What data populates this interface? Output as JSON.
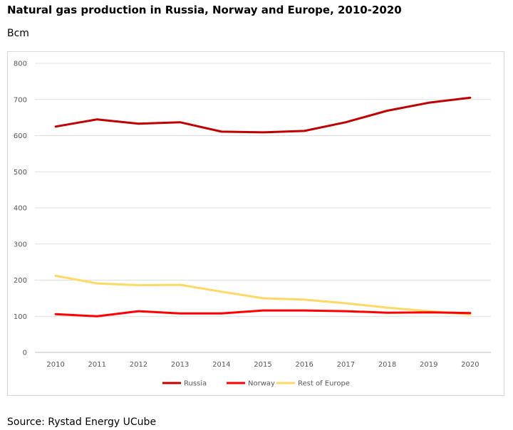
{
  "title": "Natural gas production in Russia, Norway and Europe, 2010-2020",
  "unit_label": "Bcm",
  "source": "Source: Rystad Energy UCube",
  "chart_data": {
    "type": "line",
    "title": "Natural gas production in Russia, Norway and Europe, 2010-2020",
    "ylabel": "Bcm",
    "xlabel": "",
    "x": [
      "2010",
      "2011",
      "2012",
      "2013",
      "2014",
      "2015",
      "2016",
      "2017",
      "2018",
      "2019",
      "2020"
    ],
    "yticks": [
      0,
      100,
      200,
      300,
      400,
      500,
      600,
      700,
      800
    ],
    "ylim": [
      0,
      800
    ],
    "grid": true,
    "legend_position": "bottom",
    "series": [
      {
        "name": "Russia",
        "color": "#c00000",
        "values": [
          625,
          645,
          633,
          637,
          611,
          609,
          613,
          637,
          669,
          691,
          705
        ]
      },
      {
        "name": "Norway",
        "color": "#ff0000",
        "values": [
          106,
          100,
          114,
          108,
          108,
          116,
          116,
          114,
          110,
          111,
          109
        ]
      },
      {
        "name": "Rest of Europe",
        "color": "#ffd966",
        "values": [
          212,
          191,
          186,
          187,
          168,
          150,
          146,
          136,
          124,
          114,
          105
        ]
      }
    ]
  }
}
